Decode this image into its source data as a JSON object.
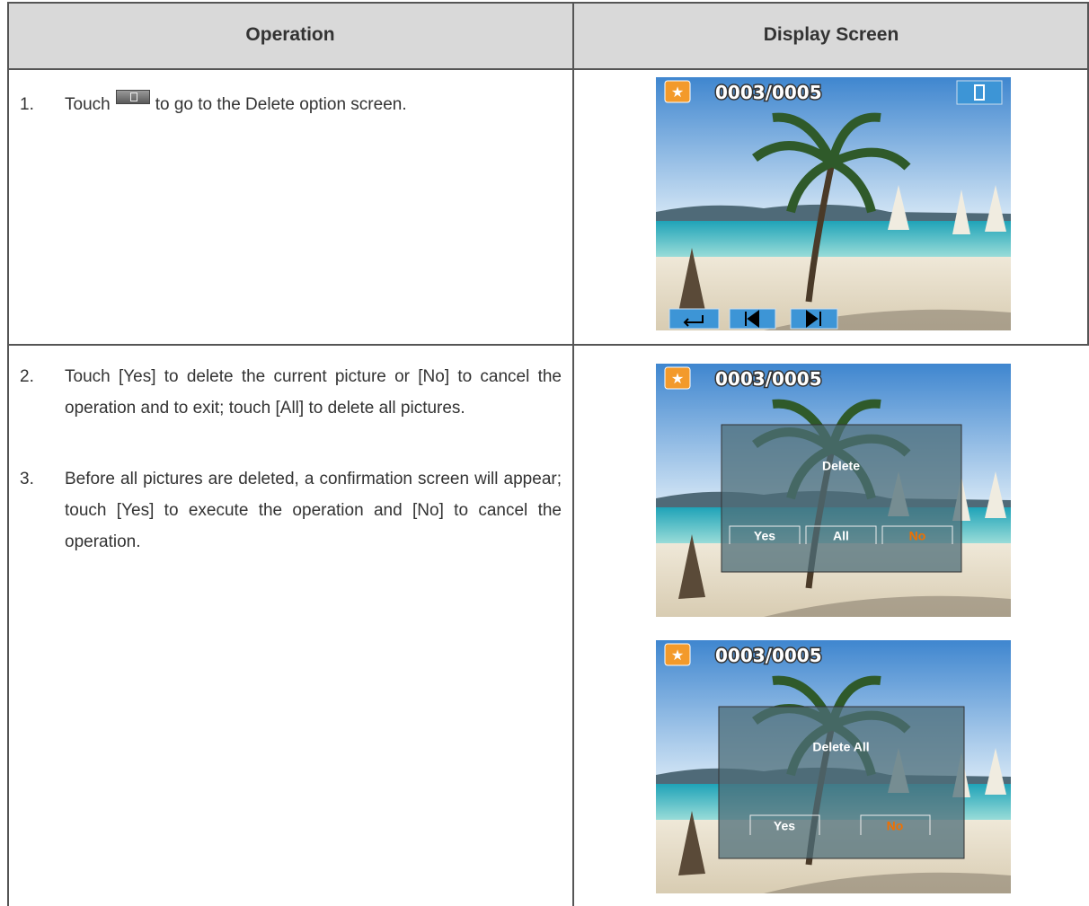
{
  "table": {
    "header": [
      "Operation",
      "Display Screen"
    ],
    "rows": [
      {
        "steps": [
          {
            "number": "1.",
            "text": [
              "Touch",
              "to go to the Delete option screen."
            ]
          }
        ],
        "screens": [
          {
            "counter": "0003/0005"
          }
        ]
      },
      {
        "steps": [
          {
            "number": "2.",
            "text": "Touch [Yes] to delete the current picture or [No] to cancel the operation and to exit; touch [All] to delete all pictures."
          },
          {
            "number": "3.",
            "text": "Before all pictures are deleted, a confirmation screen will appear; touch [Yes] to execute the operation and [No] to cancel the operation."
          }
        ],
        "screens": [
          {
            "counter": "0003/0005",
            "dialog": {
              "title": "Delete",
              "buttons": [
                "Yes",
                "All",
                "No"
              ]
            }
          },
          {
            "counter": "0003/0005",
            "dialog": {
              "title": "Delete All",
              "buttons": [
                "Yes",
                "No"
              ]
            }
          }
        ]
      }
    ]
  }
}
